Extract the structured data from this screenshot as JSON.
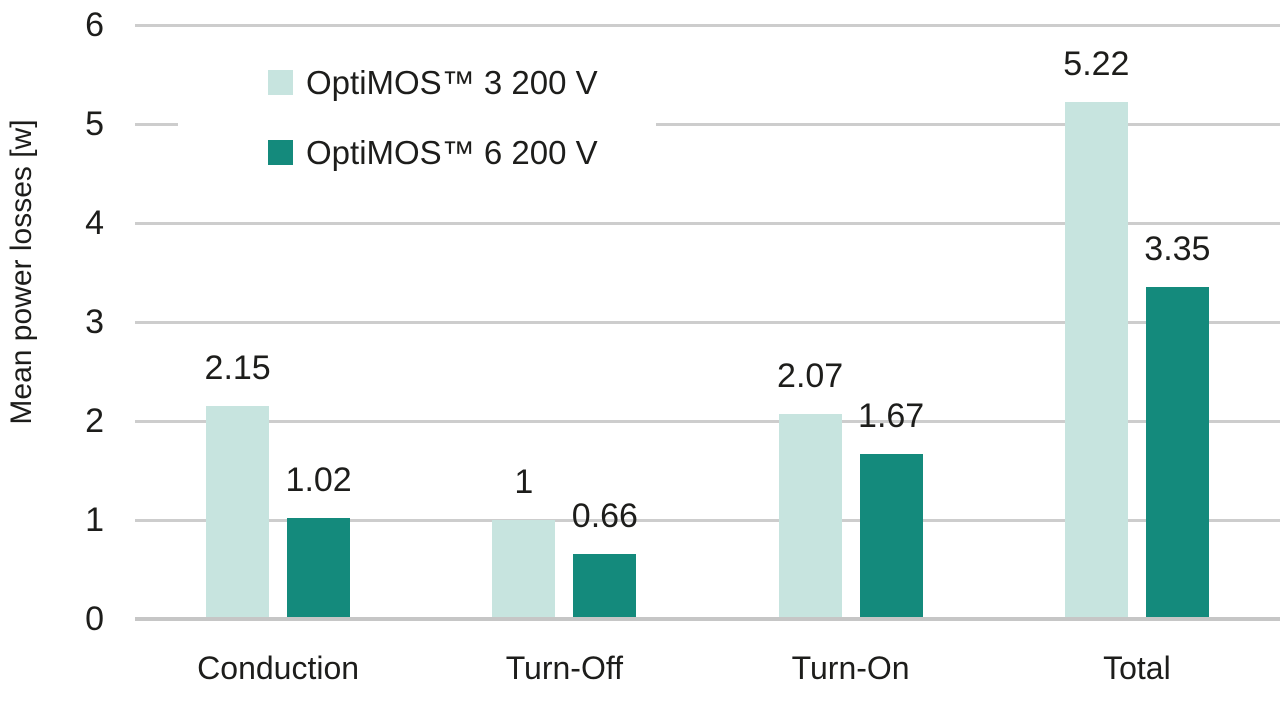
{
  "chart_data": {
    "type": "bar",
    "title": "",
    "categories": [
      "Conduction",
      "Turn-Off",
      "Turn-On",
      "Total"
    ],
    "series": [
      {
        "name": "OptiMOS™ 3 200 V",
        "color": "#c7e4df",
        "values": [
          2.15,
          1,
          2.07,
          5.22
        ]
      },
      {
        "name": "OptiMOS™ 6 200 V",
        "color": "#148a7c",
        "values": [
          1.02,
          0.66,
          1.67,
          3.35
        ]
      }
    ],
    "xlabel": "",
    "ylabel": "Mean power losses [w]",
    "ylim": [
      0,
      6
    ],
    "yticks": [
      0,
      1,
      2,
      3,
      4,
      5,
      6
    ],
    "grid": "horizontal",
    "legend_position": "top-left"
  },
  "colors": {
    "grid": "#cdcdcd",
    "axis_line": "#c6c6c6",
    "text": "#1d1d1b",
    "background": "#ffffff"
  }
}
